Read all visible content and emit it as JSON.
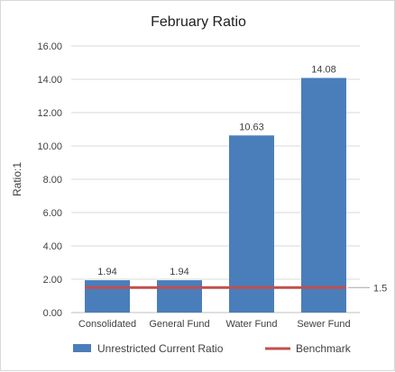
{
  "chart_data": {
    "type": "bar",
    "title": "February Ratio",
    "ylabel": "Ratio:1",
    "xlabel": "",
    "categories": [
      "Consolidated",
      "General Fund",
      "Water Fund",
      "Sewer Fund"
    ],
    "series": [
      {
        "name": "Unrestricted Current Ratio",
        "type": "bar",
        "color": "#4a7ebb",
        "values": [
          1.94,
          1.94,
          10.63,
          14.08
        ],
        "data_labels": [
          "1.94",
          "1.94",
          "10.63",
          "14.08"
        ]
      },
      {
        "name": "Benchmark",
        "type": "line",
        "color": "#c0504d",
        "values": [
          1.5,
          1.5,
          1.5,
          1.5
        ],
        "end_label": "1.5"
      }
    ],
    "ylim": [
      0,
      16
    ],
    "yticks": [
      "0.00",
      "2.00",
      "4.00",
      "6.00",
      "8.00",
      "10.00",
      "12.00",
      "14.00",
      "16.00"
    ],
    "grid": true,
    "legend_position": "bottom"
  }
}
